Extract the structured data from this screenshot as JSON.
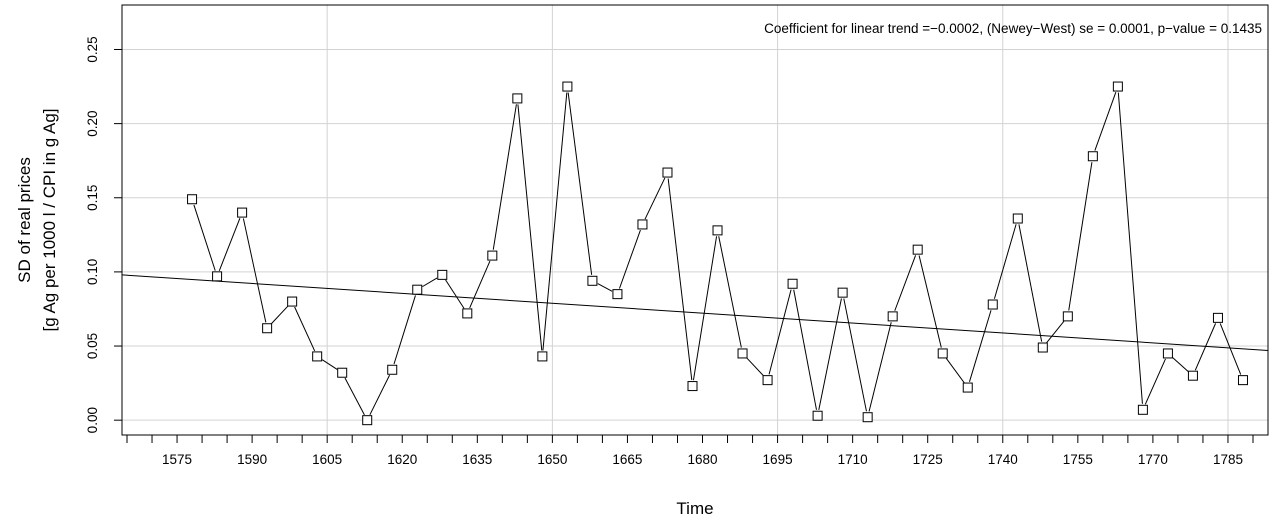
{
  "chart_data": {
    "type": "line",
    "xlabel": "Time",
    "ylabel_lines": [
      "SD of real prices",
      "[g Ag per 1000 l / CPI in g Ag]"
    ],
    "annotation": "Coefficient for linear trend =−0.0002, (Newey−West) se = 0.0001, p−value = 0.1435",
    "xlim": [
      1564,
      1793
    ],
    "ylim": [
      -0.01,
      0.28
    ],
    "x_ticks": [
      1575,
      1590,
      1605,
      1620,
      1635,
      1650,
      1665,
      1680,
      1695,
      1710,
      1725,
      1740,
      1755,
      1770,
      1785
    ],
    "x_minor_tick_step": 5,
    "y_ticks": [
      0.0,
      0.05,
      0.1,
      0.15,
      0.2,
      0.25
    ],
    "y_tick_labels": [
      "0.00",
      "0.05",
      "0.10",
      "0.15",
      "0.20",
      "0.25"
    ],
    "x_grid": [
      1605,
      1650,
      1695,
      1740,
      1785
    ],
    "y_grid": [
      0.0,
      0.05,
      0.1,
      0.15,
      0.2,
      0.25
    ],
    "series": [
      {
        "marker": "open-square",
        "x": [
          1578,
          1583,
          1588,
          1593,
          1598,
          1603,
          1608,
          1613,
          1618,
          1623,
          1628,
          1633,
          1638,
          1643,
          1648,
          1653,
          1658,
          1663,
          1668,
          1673,
          1678,
          1683,
          1688,
          1693,
          1698,
          1703,
          1708,
          1713,
          1718,
          1723,
          1728,
          1733,
          1738,
          1743,
          1748,
          1753,
          1758,
          1763,
          1768,
          1773,
          1778,
          1783,
          1788
        ],
        "y": [
          0.149,
          0.097,
          0.14,
          0.062,
          0.08,
          0.043,
          0.032,
          0.0,
          0.034,
          0.088,
          0.098,
          0.072,
          0.111,
          0.217,
          0.043,
          0.225,
          0.094,
          0.085,
          0.132,
          0.167,
          0.023,
          0.128,
          0.045,
          0.027,
          0.092,
          0.003,
          0.086,
          0.002,
          0.07,
          0.115,
          0.045,
          0.022,
          0.078,
          0.136,
          0.049,
          0.07,
          0.178,
          0.225,
          0.007,
          0.045,
          0.03,
          0.069,
          0.027
        ]
      }
    ],
    "trend_line": {
      "x": [
        1564,
        1793
      ],
      "y": [
        0.098,
        0.047
      ]
    },
    "colors": {
      "grid": "#d3d3d3",
      "line": "#000000",
      "frame": "#000000"
    }
  }
}
